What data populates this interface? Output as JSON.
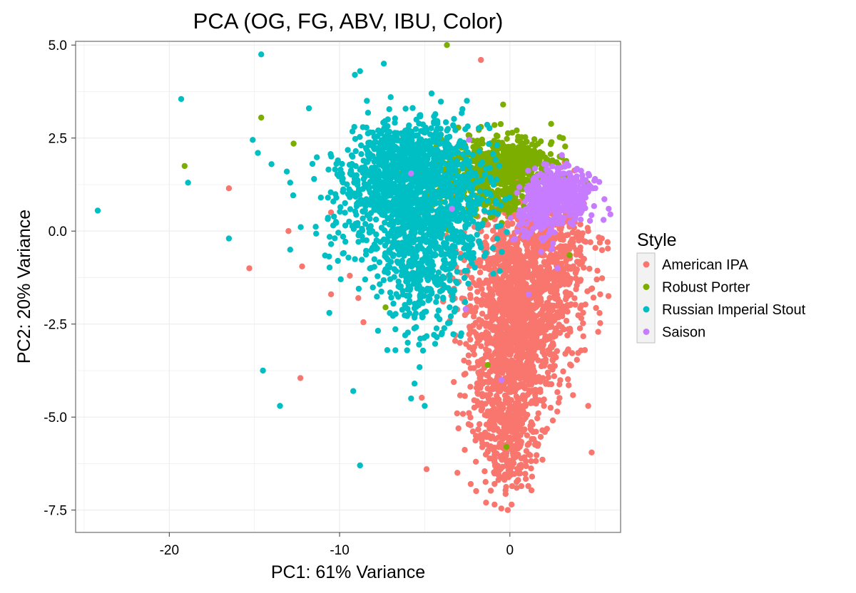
{
  "chart_data": {
    "type": "scatter",
    "title": "PCA (OG, FG, ABV, IBU, Color)",
    "xlabel": "PC1: 61% Variance",
    "ylabel": "PC2: 20% Variance",
    "xlim": [
      -25.5,
      6.5
    ],
    "ylim": [
      -8.1,
      5.1
    ],
    "x_ticks": [
      -20,
      -10,
      0
    ],
    "x_tick_labels": [
      "-20",
      "-10",
      "0"
    ],
    "y_ticks": [
      5.0,
      2.5,
      0.0,
      -2.5,
      -5.0,
      -7.5
    ],
    "y_tick_labels": [
      "5.0",
      "2.5",
      "0.0",
      "-2.5",
      "-5.0",
      "-7.5"
    ],
    "grid": true,
    "legend": {
      "title": "Style",
      "position": "right"
    },
    "series": [
      {
        "name": "American IPA",
        "color": "#F8766D",
        "points": [
          [
            -1.7,
            4.6
          ],
          [
            -16.5,
            1.15
          ],
          [
            -15.3,
            -1.0
          ],
          [
            -13.0,
            0.0
          ],
          [
            -12.2,
            -0.95
          ],
          [
            -12.3,
            -3.95
          ],
          [
            -10.5,
            0.5
          ],
          [
            -10.5,
            -1.7
          ],
          [
            -9.4,
            -1.2
          ],
          [
            -8.9,
            -1.8
          ],
          [
            -8.6,
            -2.45
          ],
          [
            4.8,
            -5.95
          ],
          [
            4.6,
            -4.7
          ],
          [
            5.3,
            -1.7
          ],
          [
            5.4,
            -0.2
          ],
          [
            5.1,
            -1.3
          ],
          [
            2.6,
            -3.9
          ],
          [
            2.0,
            -4.7
          ],
          [
            1.5,
            -4.5
          ],
          [
            1.3,
            -6.6
          ],
          [
            0.1,
            -7.35
          ],
          [
            -0.9,
            -7.35
          ],
          [
            -1.4,
            -7.3
          ],
          [
            -2.3,
            -6.8
          ],
          [
            -2.0,
            -6.2
          ],
          [
            -3.1,
            -4.9
          ],
          [
            -2.0,
            -5.5
          ],
          [
            0.4,
            -6.9
          ],
          [
            4.4,
            -3.2
          ],
          [
            4.2,
            -2.0
          ],
          [
            3.8,
            0.3
          ],
          [
            4.6,
            0.0
          ],
          [
            -3.6,
            -1.2
          ],
          [
            -3.2,
            -2.8
          ],
          [
            0.5,
            0.5
          ],
          [
            -0.8,
            0.4
          ]
        ],
        "clusters": [
          {
            "cx": 0.6,
            "cy": -1.4,
            "sx": 1.6,
            "sy": 1.2,
            "n": 1000
          },
          {
            "cx": 0.2,
            "cy": -3.6,
            "sx": 1.3,
            "sy": 1.0,
            "n": 650
          },
          {
            "cx": -0.2,
            "cy": -5.7,
            "sx": 0.9,
            "sy": 0.8,
            "n": 260
          },
          {
            "cx": 2.6,
            "cy": -0.7,
            "sx": 1.2,
            "sy": 0.9,
            "n": 300
          }
        ]
      },
      {
        "name": "Robust Porter",
        "color": "#7CAE00",
        "points": [
          [
            -3.7,
            5.0
          ],
          [
            -14.6,
            3.05
          ],
          [
            -12.7,
            2.35
          ],
          [
            -19.1,
            1.75
          ],
          [
            -0.4,
            3.4
          ],
          [
            -0.9,
            2.85
          ],
          [
            -7.3,
            -2.05
          ],
          [
            -0.2,
            -5.8
          ],
          [
            -1.3,
            -3.6
          ],
          [
            3.5,
            -0.65
          ],
          [
            1.5,
            2.3
          ],
          [
            2.5,
            1.9
          ],
          [
            -5.2,
            2.2
          ],
          [
            -4.3,
            2.3
          ],
          [
            -1.7,
            2.8
          ]
        ],
        "clusters": [
          {
            "cx": -0.8,
            "cy": 1.5,
            "sx": 1.7,
            "sy": 0.5,
            "n": 600
          },
          {
            "cx": 0.2,
            "cy": 2.0,
            "sx": 1.0,
            "sy": 0.25,
            "n": 150
          }
        ]
      },
      {
        "name": "Russian Imperial Stout",
        "color": "#00BFC4",
        "points": [
          [
            -24.2,
            0.55
          ],
          [
            -19.3,
            3.55
          ],
          [
            -18.9,
            1.3
          ],
          [
            -14.6,
            4.75
          ],
          [
            -14.5,
            -3.75
          ],
          [
            -16.5,
            -0.2
          ],
          [
            -15.1,
            2.45
          ],
          [
            -14.8,
            2.1
          ],
          [
            -14.0,
            1.8
          ],
          [
            -13.1,
            1.6
          ],
          [
            -12.9,
            1.3
          ],
          [
            -12.9,
            -0.5
          ],
          [
            -13.5,
            -4.7
          ],
          [
            -11.8,
            3.3
          ],
          [
            -9.2,
            -4.3
          ],
          [
            -8.8,
            -6.3
          ],
          [
            -9.1,
            4.2
          ],
          [
            -8.8,
            4.3
          ],
          [
            -7.4,
            4.5
          ],
          [
            -8.4,
            3.5
          ],
          [
            -7.0,
            3.6
          ],
          [
            -4.6,
            3.7
          ],
          [
            -10.6,
            -2.2
          ],
          [
            -10.1,
            -0.8
          ],
          [
            -11.1,
            0.9
          ],
          [
            -5.6,
            -4.1
          ],
          [
            -5.8,
            -4.5
          ],
          [
            -5.0,
            -4.7
          ],
          [
            -6.0,
            -3.0
          ],
          [
            -7.2,
            -3.2
          ],
          [
            -10.1,
            1.9
          ],
          [
            -11.5,
            1.4
          ],
          [
            -8.5,
            -1.3
          ]
        ],
        "clusters": [
          {
            "cx": -4.8,
            "cy": 0.8,
            "sx": 1.8,
            "sy": 0.9,
            "n": 1100
          },
          {
            "cx": -7.3,
            "cy": 1.4,
            "sx": 1.2,
            "sy": 0.6,
            "n": 260
          },
          {
            "cx": -5.2,
            "cy": -1.3,
            "sx": 1.1,
            "sy": 0.8,
            "n": 240
          },
          {
            "cx": -9.0,
            "cy": 0.3,
            "sx": 1.3,
            "sy": 1.0,
            "n": 110
          },
          {
            "cx": -5.5,
            "cy": 2.3,
            "sx": 1.5,
            "sy": 0.35,
            "n": 170
          }
        ]
      },
      {
        "name": "Saison",
        "color": "#C77CFF",
        "points": [
          [
            5.8,
            0.6
          ],
          [
            5.9,
            0.45
          ],
          [
            5.5,
            0.3
          ],
          [
            2.0,
            1.8
          ],
          [
            -2.4,
            2.45
          ],
          [
            -5.8,
            1.55
          ],
          [
            -3.4,
            0.6
          ],
          [
            -2.6,
            -2.1
          ],
          [
            -0.5,
            -4.0
          ],
          [
            2.8,
            -1.0
          ],
          [
            1.1,
            -1.7
          ],
          [
            5.0,
            1.4
          ]
        ],
        "clusters": [
          {
            "cx": 2.9,
            "cy": 1.0,
            "sx": 0.9,
            "sy": 0.35,
            "n": 400
          },
          {
            "cx": 1.6,
            "cy": 0.5,
            "sx": 0.7,
            "sy": 0.4,
            "n": 120
          }
        ]
      }
    ]
  }
}
